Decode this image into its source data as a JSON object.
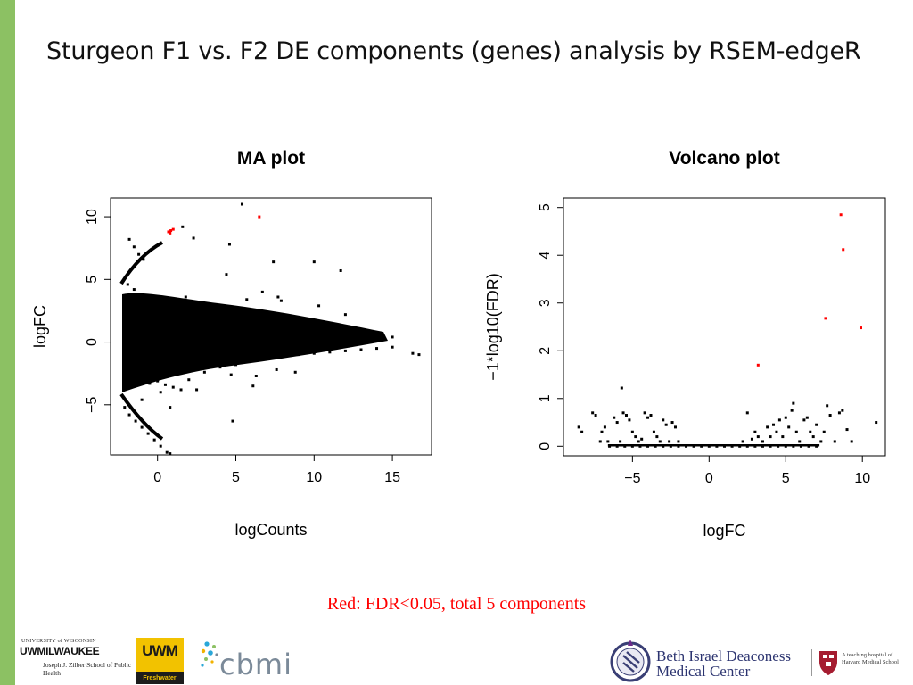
{
  "slide": {
    "title": "Sturgeon F1 vs. F2 DE components (genes) analysis by RSEM-edgeR",
    "caption": "Red: FDR<0.05, total 5 components",
    "accent_color": "#8cc163",
    "caption_color": "#ff0000"
  },
  "chart_data": [
    {
      "type": "scatter",
      "title": "MA plot",
      "xlabel": "logCounts",
      "ylabel": "logFC",
      "xlim": [
        -3,
        17.5
      ],
      "ylim": [
        -9,
        11.5
      ],
      "x_ticks": [
        0,
        5,
        10,
        15
      ],
      "y_ticks": [
        -5,
        0,
        5,
        10
      ],
      "grid": false,
      "legend": "none",
      "series": [
        {
          "color": "#000000",
          "points": [
            [
              -1.8,
              8.2
            ],
            [
              -1.5,
              7.6
            ],
            [
              -1.2,
              7.0
            ],
            [
              -0.9,
              6.6
            ],
            [
              -1.9,
              4.6
            ],
            [
              -1.5,
              4.2
            ],
            [
              -1.0,
              3.7
            ],
            [
              -2.0,
              3.5
            ],
            [
              -1.3,
              3.0
            ],
            [
              -0.6,
              2.8
            ],
            [
              0.2,
              2.6
            ],
            [
              1.0,
              2.4
            ],
            [
              1.5,
              2.6
            ],
            [
              2.0,
              2.2
            ],
            [
              3.0,
              2.0
            ],
            [
              4.0,
              1.8
            ],
            [
              5.0,
              1.6
            ],
            [
              6.0,
              1.5
            ],
            [
              7.0,
              1.4
            ],
            [
              8.0,
              1.3
            ],
            [
              9.0,
              1.2
            ],
            [
              10.0,
              1.1
            ],
            [
              11.0,
              1.0
            ],
            [
              12.0,
              0.9
            ],
            [
              13.0,
              0.8
            ],
            [
              14.0,
              0.6
            ],
            [
              15.0,
              0.4
            ],
            [
              -2.0,
              0.0
            ],
            [
              -1.5,
              0.5
            ],
            [
              -1.0,
              -0.5
            ],
            [
              -0.5,
              0.8
            ],
            [
              0.0,
              -0.8
            ],
            [
              0.5,
              1.2
            ],
            [
              1.0,
              -1.2
            ],
            [
              2.0,
              0.6
            ],
            [
              3.0,
              -0.6
            ],
            [
              4.0,
              0.4
            ],
            [
              5.0,
              -0.4
            ],
            [
              6.0,
              0.3
            ],
            [
              7.0,
              -0.3
            ],
            [
              8.0,
              0.2
            ],
            [
              9.0,
              -0.2
            ],
            [
              10.0,
              0.15
            ],
            [
              11.0,
              -0.15
            ],
            [
              12.0,
              0.1
            ],
            [
              13.0,
              -0.1
            ],
            [
              14.0,
              0.2
            ],
            [
              15.0,
              -0.4
            ],
            [
              16.3,
              -0.9
            ],
            [
              16.7,
              -1.0
            ],
            [
              -2.0,
              -2.6
            ],
            [
              -1.5,
              -2.9
            ],
            [
              -1.0,
              -3.0
            ],
            [
              -0.5,
              -3.3
            ],
            [
              0.0,
              -3.1
            ],
            [
              0.5,
              -3.4
            ],
            [
              1.0,
              -3.6
            ],
            [
              1.5,
              -3.8
            ],
            [
              2.0,
              -3.0
            ],
            [
              3.0,
              -2.4
            ],
            [
              4.0,
              -2.0
            ],
            [
              5.0,
              -1.8
            ],
            [
              6.0,
              -1.5
            ],
            [
              7.0,
              -1.3
            ],
            [
              8.0,
              -1.1
            ],
            [
              9.0,
              -1.0
            ],
            [
              10.0,
              -0.9
            ],
            [
              11.0,
              -0.8
            ],
            [
              12.0,
              -0.7
            ],
            [
              13.0,
              -0.6
            ],
            [
              14.0,
              -0.5
            ],
            [
              -2.1,
              -5.2
            ],
            [
              -1.8,
              -5.8
            ],
            [
              -1.4,
              -6.3
            ],
            [
              -1.0,
              -6.8
            ],
            [
              -0.6,
              -7.3
            ],
            [
              -0.2,
              -7.8
            ],
            [
              0.2,
              -8.3
            ],
            [
              0.6,
              -8.8
            ],
            [
              0.8,
              -8.9
            ],
            [
              -1.0,
              -4.6
            ],
            [
              0.2,
              -4.0
            ],
            [
              0.8,
              -5.2
            ],
            [
              2.5,
              -3.8
            ],
            [
              4.8,
              -6.3
            ],
            [
              2.3,
              8.3
            ],
            [
              1.6,
              9.2
            ],
            [
              5.4,
              11.0
            ],
            [
              4.6,
              7.8
            ],
            [
              4.4,
              5.4
            ],
            [
              5.7,
              3.4
            ],
            [
              6.7,
              4.0
            ],
            [
              7.4,
              6.4
            ],
            [
              7.7,
              3.6
            ],
            [
              7.9,
              3.3
            ],
            [
              10.0,
              6.4
            ],
            [
              10.3,
              2.9
            ],
            [
              11.7,
              5.7
            ],
            [
              12.0,
              2.2
            ],
            [
              4.7,
              -2.6
            ],
            [
              6.1,
              -3.5
            ],
            [
              6.3,
              -2.7
            ],
            [
              7.6,
              -2.2
            ],
            [
              8.8,
              -2.4
            ],
            [
              4.0,
              2.8
            ],
            [
              2.0,
              -1.8
            ],
            [
              9.5,
              1.4
            ],
            [
              1.8,
              3.6
            ]
          ]
        },
        {
          "color": "#ff0000",
          "points": [
            [
              0.7,
              8.8
            ],
            [
              0.85,
              8.9
            ],
            [
              1.0,
              9.0
            ],
            [
              6.5,
              10.0
            ],
            [
              0.8,
              8.7
            ]
          ]
        }
      ]
    },
    {
      "type": "scatter",
      "title": "Volcano plot",
      "xlabel": "logFC",
      "ylabel": "−1*log10(FDR)",
      "xlim": [
        -9.5,
        11.5
      ],
      "ylim": [
        -0.2,
        5.2
      ],
      "x_ticks": [
        -5,
        0,
        5,
        10
      ],
      "y_ticks": [
        0,
        1,
        2,
        3,
        4,
        5
      ],
      "grid": false,
      "legend": "none",
      "series": [
        {
          "color": "#000000",
          "points": [
            [
              -6.5,
              0.0
            ],
            [
              -6.0,
              0.0
            ],
            [
              -5.5,
              0.0
            ],
            [
              -5.0,
              0.0
            ],
            [
              -4.5,
              0.0
            ],
            [
              -4.0,
              0.0
            ],
            [
              -3.5,
              0.0
            ],
            [
              -3.0,
              0.0
            ],
            [
              -2.5,
              0.0
            ],
            [
              -2.0,
              0.0
            ],
            [
              -1.5,
              0.0
            ],
            [
              -1.0,
              0.0
            ],
            [
              -0.5,
              0.0
            ],
            [
              0.0,
              0.0
            ],
            [
              0.5,
              0.0
            ],
            [
              1.0,
              0.0
            ],
            [
              1.5,
              0.0
            ],
            [
              2.0,
              0.0
            ],
            [
              2.5,
              0.0
            ],
            [
              3.0,
              0.0
            ],
            [
              3.5,
              0.0
            ],
            [
              4.0,
              0.0
            ],
            [
              4.5,
              0.0
            ],
            [
              5.0,
              0.0
            ],
            [
              5.5,
              0.0
            ],
            [
              6.0,
              0.0
            ],
            [
              6.5,
              0.0
            ],
            [
              7.0,
              0.0
            ],
            [
              -8.5,
              0.4
            ],
            [
              -8.3,
              0.3
            ],
            [
              -7.6,
              0.7
            ],
            [
              -7.4,
              0.65
            ],
            [
              -7.0,
              0.3
            ],
            [
              -6.8,
              0.4
            ],
            [
              -6.2,
              0.6
            ],
            [
              -6.0,
              0.5
            ],
            [
              -5.8,
              0.1
            ],
            [
              -5.6,
              0.7
            ],
            [
              -5.4,
              0.65
            ],
            [
              -5.2,
              0.55
            ],
            [
              -5.0,
              0.3
            ],
            [
              -4.8,
              0.2
            ],
            [
              -4.6,
              0.1
            ],
            [
              -4.4,
              0.15
            ],
            [
              -4.2,
              0.7
            ],
            [
              -4.0,
              0.6
            ],
            [
              -3.8,
              0.65
            ],
            [
              -3.6,
              0.3
            ],
            [
              -3.4,
              0.2
            ],
            [
              -3.2,
              0.1
            ],
            [
              -3.0,
              0.55
            ],
            [
              -2.8,
              0.45
            ],
            [
              -2.6,
              0.1
            ],
            [
              -2.4,
              0.5
            ],
            [
              -2.2,
              0.4
            ],
            [
              -2.0,
              0.1
            ],
            [
              -5.7,
              1.22
            ],
            [
              -6.6,
              0.1
            ],
            [
              -7.1,
              0.1
            ],
            [
              2.2,
              0.1
            ],
            [
              2.5,
              0.7
            ],
            [
              2.8,
              0.15
            ],
            [
              3.0,
              0.3
            ],
            [
              3.2,
              0.2
            ],
            [
              3.5,
              0.1
            ],
            [
              3.8,
              0.4
            ],
            [
              4.0,
              0.2
            ],
            [
              4.2,
              0.45
            ],
            [
              4.4,
              0.3
            ],
            [
              4.6,
              0.55
            ],
            [
              4.8,
              0.2
            ],
            [
              5.0,
              0.6
            ],
            [
              5.2,
              0.4
            ],
            [
              5.4,
              0.75
            ],
            [
              5.5,
              0.9
            ],
            [
              5.7,
              0.3
            ],
            [
              5.9,
              0.1
            ],
            [
              6.2,
              0.55
            ],
            [
              6.4,
              0.6
            ],
            [
              6.6,
              0.3
            ],
            [
              6.8,
              0.2
            ],
            [
              7.0,
              0.45
            ],
            [
              7.3,
              0.1
            ],
            [
              7.5,
              0.3
            ],
            [
              7.7,
              0.85
            ],
            [
              7.9,
              0.65
            ],
            [
              8.2,
              0.1
            ],
            [
              8.5,
              0.7
            ],
            [
              8.7,
              0.75
            ],
            [
              9.0,
              0.35
            ],
            [
              9.3,
              0.1
            ],
            [
              10.9,
              0.5
            ]
          ]
        },
        {
          "color": "#ff0000",
          "points": [
            [
              8.6,
              4.85
            ],
            [
              8.75,
              4.12
            ],
            [
              7.6,
              2.68
            ],
            [
              9.9,
              2.48
            ],
            [
              3.2,
              1.7
            ]
          ]
        }
      ]
    }
  ],
  "logos": {
    "uwm_top": "UNIVERSITY of WISCONSIN",
    "uwm_main": "UWMILWAUKEE",
    "uwm_sub": "Joseph J. Zilber School of Public Health",
    "uwm_box_main": "UWM",
    "uwm_box_sub": "Freshwater",
    "cbmi": "cbmi",
    "bidmc_line1": "Beth Israel Deaconess",
    "bidmc_line2": "Medical Center",
    "harvard": "A teaching hospital of Harvard Medical School"
  }
}
